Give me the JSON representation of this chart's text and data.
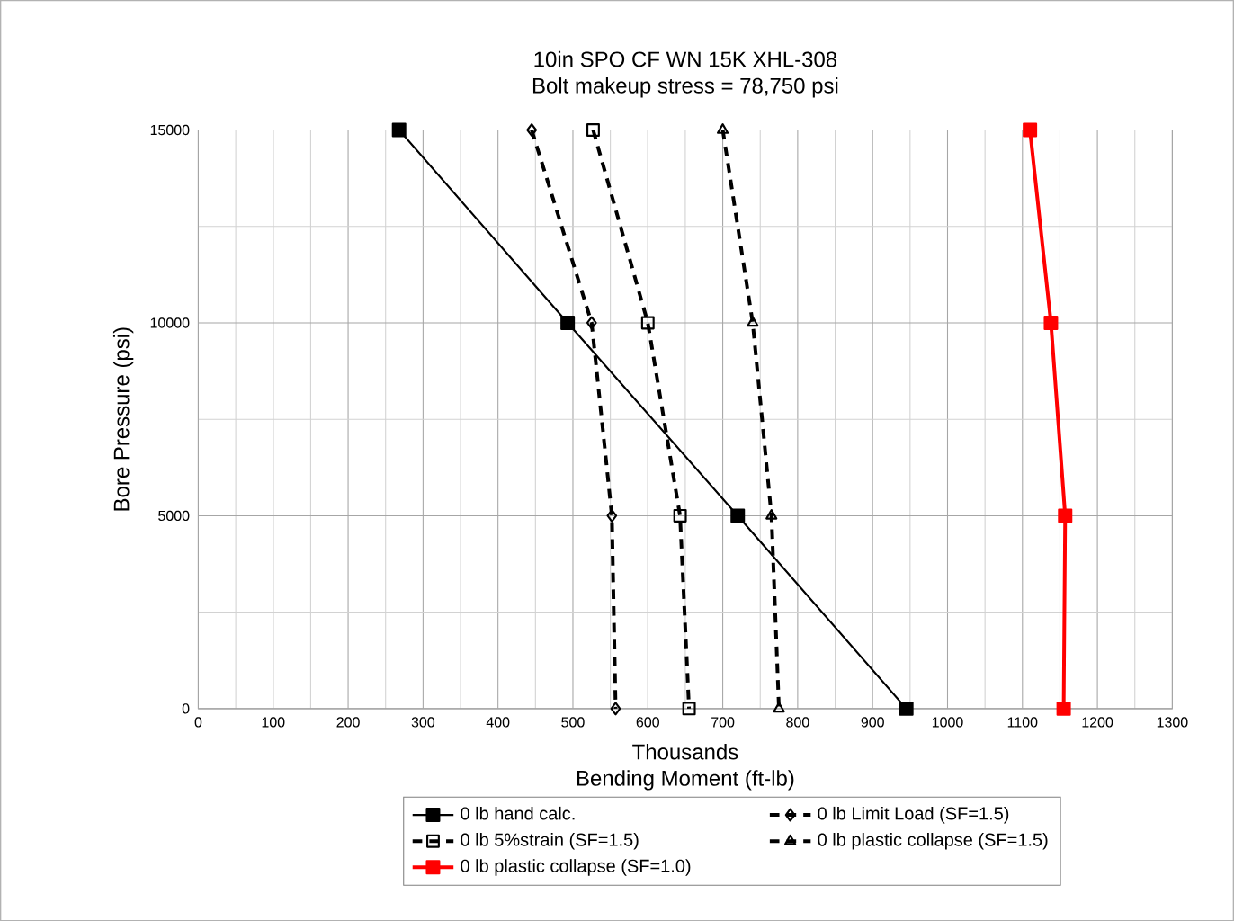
{
  "chart_data": {
    "type": "line",
    "title": "10in SPO CF WN 15K XHL-308",
    "subtitle": "Bolt makeup stress = 78,750 psi",
    "xlabel": "Bending Moment (ft-lb)",
    "ylabel": "Bore Pressure (psi)",
    "annotations": [
      "Thousands"
    ],
    "xlim": [
      0,
      1300
    ],
    "ylim": [
      0,
      15000
    ],
    "xticks": [
      0,
      100,
      200,
      300,
      400,
      500,
      600,
      700,
      800,
      900,
      1000,
      1100,
      1200,
      1300
    ],
    "yticks": [
      0,
      5000,
      10000,
      15000
    ],
    "grid": true,
    "legend": "bottom",
    "series": [
      {
        "name": "0 lb hand calc.",
        "color": "#000000",
        "marker": "square",
        "line_style": "solid",
        "x": [
          268,
          493,
          720,
          945
        ],
        "values": [
          15000,
          10000,
          5000,
          0
        ]
      },
      {
        "name": "0 lb Limit Load (SF=1.5)",
        "color": "#000000",
        "marker": "diamond",
        "line_style": "dashed",
        "x": [
          445,
          525,
          552,
          557
        ],
        "values": [
          15000,
          10000,
          5000,
          0
        ]
      },
      {
        "name": "0 lb 5%strain (SF=1.5)",
        "color": "#000000",
        "marker": "square",
        "line_style": "dashed",
        "x": [
          527,
          600,
          643,
          655
        ],
        "values": [
          15000,
          10000,
          5000,
          0
        ]
      },
      {
        "name": "0 lb plastic collapse (SF=1.5)",
        "color": "#000000",
        "marker": "triangle",
        "line_style": "dashed",
        "x": [
          700,
          740,
          765,
          775
        ],
        "values": [
          15000,
          10000,
          5000,
          0
        ]
      },
      {
        "name": "0 lb plastic collapse (SF=1.0)",
        "color": "#ff0000",
        "marker": "square",
        "line_style": "solid",
        "x": [
          1110,
          1138,
          1157,
          1155
        ],
        "values": [
          15000,
          10000,
          5000,
          0
        ]
      }
    ]
  }
}
